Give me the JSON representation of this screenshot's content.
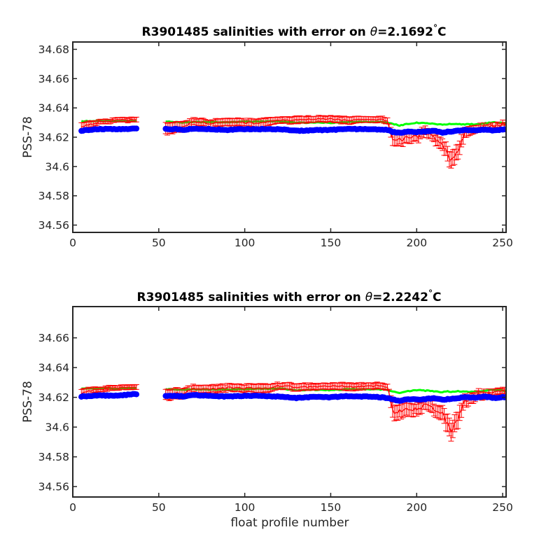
{
  "chart_data": [
    {
      "type": "scatter",
      "title": "R3901485 salinities with error on",
      "title_symbol": "θ",
      "title_value": "=2.1692",
      "title_degree": "°",
      "title_unit": "C",
      "xlabel": "",
      "ylabel": "PSS-78",
      "xlim": [
        0,
        252
      ],
      "ylim": [
        34.555,
        34.685
      ],
      "x_ticks": [
        0,
        50,
        100,
        150,
        200,
        250
      ],
      "y_ticks": [
        34.56,
        34.58,
        34.6,
        34.62,
        34.64,
        34.66,
        34.68
      ],
      "x_tick_labels": [
        "0",
        "50",
        "100",
        "150",
        "200",
        "250"
      ],
      "y_tick_labels": [
        "34.56",
        "34.58",
        "34.6",
        "34.62",
        "34.64",
        "34.66",
        "34.68"
      ],
      "grid": false,
      "colors": {
        "measured": "#0000ff",
        "mapped": "#00ff00",
        "calibrated": "#ff0000"
      },
      "x": [
        5,
        15,
        25,
        36,
        55,
        60,
        65,
        70,
        80,
        90,
        100,
        110,
        120,
        130,
        140,
        150,
        160,
        170,
        180,
        183,
        186,
        190,
        195,
        200,
        205,
        210,
        215,
        218,
        220,
        224,
        228,
        235,
        240,
        245,
        252
      ],
      "series": [
        {
          "values": [
            34.6245,
            34.6255,
            34.6255,
            34.6258,
            34.6255,
            34.6255,
            34.625,
            34.6258,
            34.6255,
            34.625,
            34.6255,
            34.6255,
            34.6255,
            34.6243,
            34.6248,
            34.625,
            34.6255,
            34.6255,
            34.625,
            34.625,
            34.6235,
            34.623,
            34.6238,
            34.6235,
            34.6238,
            34.6245,
            34.623,
            34.6238,
            34.6235,
            34.6245,
            34.625,
            34.6245,
            34.6253,
            34.6245,
            34.6255
          ]
        },
        {
          "values": [
            34.631,
            34.631,
            34.631,
            34.6312,
            34.6305,
            34.6303,
            34.63,
            34.6305,
            34.6303,
            34.6303,
            34.6305,
            34.6308,
            34.6308,
            34.6298,
            34.63,
            34.6298,
            34.6305,
            34.6305,
            34.6303,
            34.63,
            34.6292,
            34.628,
            34.6292,
            34.6298,
            34.6295,
            34.6292,
            34.6285,
            34.629,
            34.6288,
            34.629,
            34.6288,
            34.6288,
            34.6295,
            34.6302,
            34.6295
          ]
        },
        {
          "values": [
            34.627,
            34.6305,
            34.6315,
            34.632,
            34.6255,
            34.627,
            34.6275,
            34.6305,
            34.6295,
            34.6305,
            34.63,
            34.6295,
            34.632,
            34.6315,
            34.6325,
            34.6325,
            34.6315,
            34.632,
            34.632,
            34.631,
            34.618,
            34.6185,
            34.6195,
            34.62,
            34.6235,
            34.62,
            34.6155,
            34.6085,
            34.6035,
            34.6115,
            34.6225,
            34.626,
            34.627,
            34.6275,
            34.629
          ],
          "errors": [
            0.0028,
            0.0015,
            0.0015,
            0.0015,
            0.004,
            0.0035,
            0.0035,
            0.0025,
            0.0025,
            0.0025,
            0.0025,
            0.003,
            0.002,
            0.0025,
            0.002,
            0.002,
            0.0025,
            0.002,
            0.002,
            0.002,
            0.004,
            0.004,
            0.004,
            0.0035,
            0.003,
            0.0035,
            0.004,
            0.005,
            0.0055,
            0.005,
            0.0035,
            0.0025,
            0.002,
            0.0018,
            0.0018
          ]
        }
      ]
    },
    {
      "type": "scatter",
      "title": "R3901485 salinities with error on",
      "title_symbol": "θ",
      "title_value": "=2.2242",
      "title_degree": "°",
      "title_unit": "C",
      "xlabel": "float profile number",
      "ylabel": "PSS-78",
      "xlim": [
        0,
        252
      ],
      "ylim": [
        34.553,
        34.681
      ],
      "x_ticks": [
        0,
        50,
        100,
        150,
        200,
        250
      ],
      "y_ticks": [
        34.56,
        34.58,
        34.6,
        34.62,
        34.64,
        34.66
      ],
      "x_tick_labels": [
        "0",
        "50",
        "100",
        "150",
        "200",
        "250"
      ],
      "y_tick_labels": [
        "34.56",
        "34.58",
        "34.6",
        "34.62",
        "34.64",
        "34.66"
      ],
      "grid": false,
      "colors": {
        "measured": "#0000ff",
        "mapped": "#00ff00",
        "calibrated": "#ff0000"
      },
      "x": [
        5,
        15,
        25,
        36,
        55,
        60,
        65,
        70,
        80,
        90,
        100,
        110,
        120,
        130,
        140,
        150,
        160,
        170,
        180,
        183,
        186,
        190,
        195,
        200,
        205,
        210,
        215,
        218,
        220,
        224,
        228,
        235,
        240,
        245,
        252
      ],
      "series": [
        {
          "values": [
            34.6205,
            34.6213,
            34.621,
            34.6222,
            34.6208,
            34.621,
            34.6205,
            34.6215,
            34.621,
            34.6205,
            34.621,
            34.621,
            34.6205,
            34.6195,
            34.6203,
            34.62,
            34.6208,
            34.6205,
            34.62,
            34.6195,
            34.6185,
            34.6178,
            34.6188,
            34.6185,
            34.6188,
            34.6195,
            34.6183,
            34.6188,
            34.619,
            34.6195,
            34.62,
            34.6198,
            34.6205,
            34.6195,
            34.6203
          ]
        },
        {
          "values": [
            34.626,
            34.626,
            34.626,
            34.6262,
            34.6255,
            34.6253,
            34.625,
            34.6255,
            34.6253,
            34.6253,
            34.6255,
            34.6258,
            34.6258,
            34.6248,
            34.625,
            34.6248,
            34.6255,
            34.6255,
            34.6253,
            34.625,
            34.6242,
            34.623,
            34.6242,
            34.6248,
            34.6245,
            34.6242,
            34.6235,
            34.624,
            34.6238,
            34.624,
            34.6238,
            34.6238,
            34.6245,
            34.6252,
            34.6245
          ]
        },
        {
          "values": [
            34.623,
            34.6255,
            34.6265,
            34.6268,
            34.6215,
            34.6225,
            34.623,
            34.626,
            34.6255,
            34.6265,
            34.6262,
            34.6258,
            34.6278,
            34.6268,
            34.6272,
            34.6278,
            34.627,
            34.6275,
            34.6278,
            34.627,
            34.6105,
            34.611,
            34.612,
            34.6125,
            34.6155,
            34.6125,
            34.609,
            34.602,
            34.5975,
            34.6055,
            34.6175,
            34.6215,
            34.622,
            34.6228,
            34.624
          ],
          "errors": [
            0.0028,
            0.0015,
            0.0015,
            0.0015,
            0.0035,
            0.0035,
            0.0035,
            0.0025,
            0.0025,
            0.0025,
            0.0025,
            0.003,
            0.002,
            0.0025,
            0.002,
            0.002,
            0.0025,
            0.002,
            0.002,
            0.002,
            0.005,
            0.005,
            0.0045,
            0.004,
            0.0035,
            0.004,
            0.0045,
            0.006,
            0.006,
            0.0055,
            0.004,
            0.003,
            0.0025,
            0.002,
            0.002
          ]
        }
      ]
    }
  ]
}
